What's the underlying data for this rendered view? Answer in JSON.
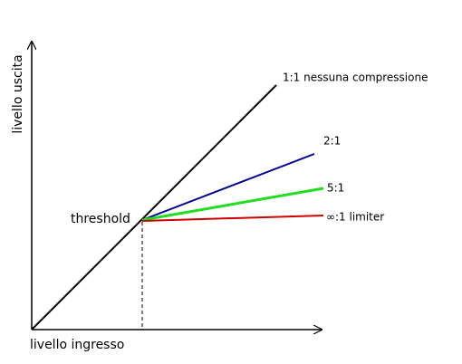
{
  "axes": {
    "x_label": "livello ingresso",
    "y_label": "livello uscita"
  },
  "threshold": "threshold",
  "curves": [
    {
      "label": "1:1 nessuna compressione"
    },
    {
      "label": "2:1"
    },
    {
      "label": "5:1"
    },
    {
      "label": "∞:1 limiter"
    }
  ]
}
